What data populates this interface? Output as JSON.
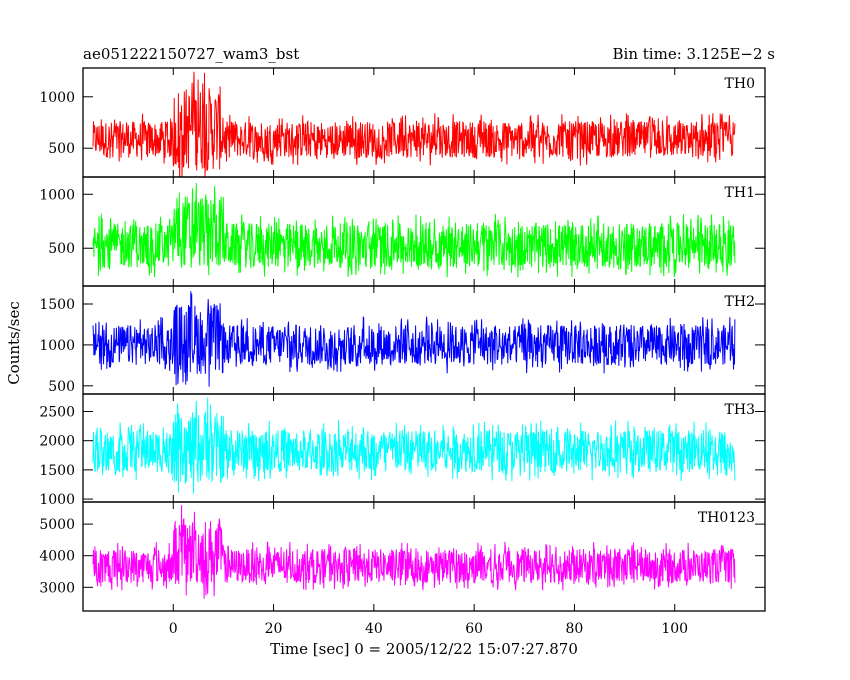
{
  "header": {
    "left": "ae051222150727_wam3_bst",
    "right": "Bin time: 3.125E−2 s"
  },
  "chart_data": {
    "type": "line",
    "title": "ae051222150727_wam3_bst",
    "subtitle": "Bin time: 3.125E−2 s",
    "xlabel": "Time [sec] 0 = 2005/12/22 15:07:27.870",
    "ylabel": "Counts/sec",
    "xlim": [
      -18,
      118
    ],
    "x_ticks": [
      0,
      20,
      40,
      60,
      80,
      100
    ],
    "x_tick_labels": [
      "0",
      "20",
      "40",
      "60",
      "80",
      "100"
    ],
    "data_x_range": [
      -16,
      112
    ],
    "grid": false,
    "panels": [
      {
        "name": "TH0",
        "color": "#ff0000",
        "ylim": [
          220,
          1280
        ],
        "y_ticks": [
          500,
          1000
        ],
        "y_tick_labels": [
          "500",
          "1000"
        ],
        "typical_band": [
          330,
          840
        ],
        "burst_band": [
          100,
          1280
        ],
        "burst_x": [
          0,
          10
        ]
      },
      {
        "name": "TH1",
        "color": "#00ff00",
        "ylim": [
          150,
          1160
        ],
        "y_ticks": [
          500,
          1000
        ],
        "y_tick_labels": [
          "500",
          "1000"
        ],
        "typical_band": [
          230,
          820
        ],
        "burst_band": [
          170,
          1150
        ],
        "burst_x": [
          0,
          10
        ]
      },
      {
        "name": "TH2",
        "color": "#0000ff",
        "ylim": [
          400,
          1720
        ],
        "y_ticks": [
          500,
          1000,
          1500
        ],
        "y_tick_labels": [
          "500",
          "1000",
          "1500"
        ],
        "typical_band": [
          650,
          1350
        ],
        "burst_band": [
          450,
          1700
        ],
        "burst_x": [
          0,
          10
        ]
      },
      {
        "name": "TH3",
        "color": "#00ffff",
        "ylim": [
          950,
          2800
        ],
        "y_ticks": [
          1000,
          1500,
          2000,
          2500
        ],
        "y_tick_labels": [
          "1000",
          "1500",
          "2000",
          "2500"
        ],
        "typical_band": [
          1300,
          2350
        ],
        "burst_band": [
          1000,
          2750
        ],
        "burst_x": [
          0,
          10
        ]
      },
      {
        "name": "TH0123",
        "color": "#ff00ff",
        "ylim": [
          2250,
          5700
        ],
        "y_ticks": [
          3000,
          4000,
          5000
        ],
        "y_tick_labels": [
          "3000",
          "4000",
          "5000"
        ],
        "typical_band": [
          2900,
          4450
        ],
        "burst_band": [
          2600,
          5650
        ],
        "burst_x": [
          0,
          10
        ]
      }
    ]
  }
}
